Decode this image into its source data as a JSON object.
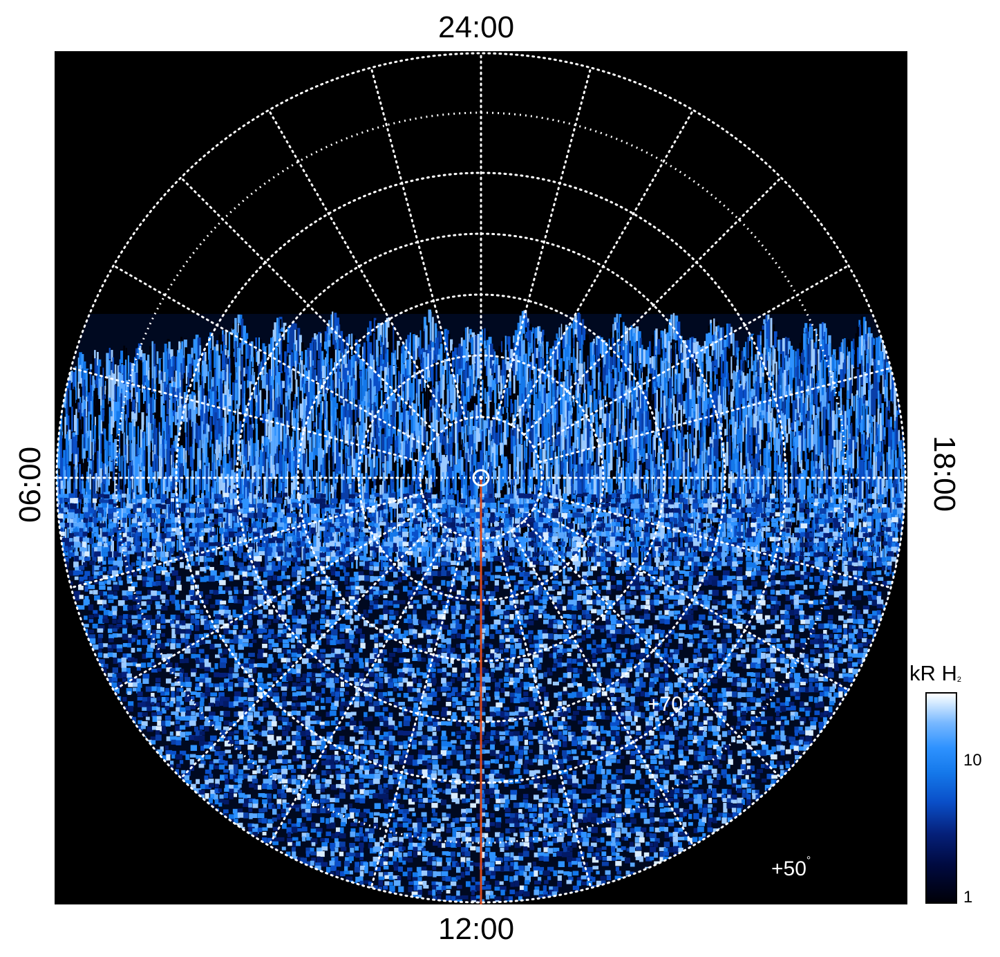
{
  "local_time_labels": {
    "top": "24:00",
    "bottom": "12:00",
    "left": "06:00",
    "right": "18:00"
  },
  "latitude_labels": {
    "lat70": "+70",
    "lat50": "+50",
    "degree_symbol": "°"
  },
  "colorbar": {
    "title_main": "kR H",
    "title_sub": "2",
    "scale": "log",
    "ticks": [
      "10",
      "1"
    ],
    "colors": [
      "#000008",
      "#05207a",
      "#1478ea",
      "#78b8ff",
      "#ffffff"
    ]
  },
  "colors": {
    "background": "#000000",
    "grid": "#ffffff",
    "meridian_line": "#d84a1e",
    "emission_low": "#000a40",
    "emission_mid": "#1478ea",
    "emission_high": "#d8ecff"
  }
}
